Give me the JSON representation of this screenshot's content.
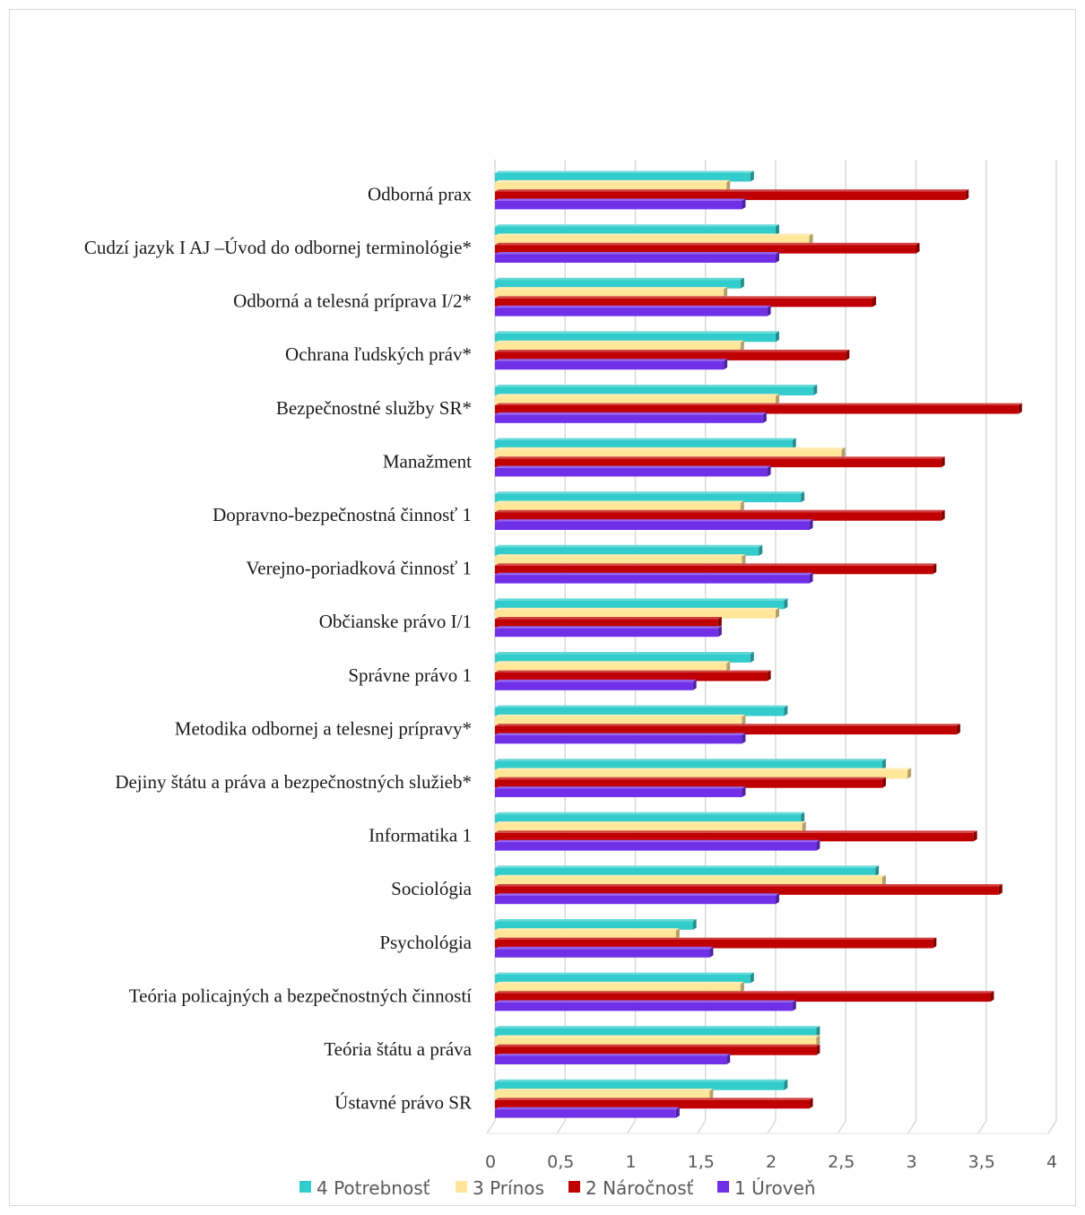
{
  "chart_data": {
    "type": "bar",
    "orientation": "horizontal",
    "style": "3d-clustered",
    "title": "",
    "xlabel": "",
    "ylabel": "",
    "xlim": [
      0,
      4
    ],
    "xticks": [
      0,
      0.5,
      1,
      1.5,
      2,
      2.5,
      3,
      3.5,
      4
    ],
    "xtick_labels": [
      "0",
      "0,5",
      "1",
      "1,5",
      "2",
      "2,5",
      "3",
      "3,5",
      "4"
    ],
    "grid": "vertical",
    "legend_position": "bottom",
    "categories": [
      "Odborná prax",
      "Cudzí jazyk  I AJ –Úvod do odbornej terminológie*",
      "Odborná a telesná príprava I/2*",
      "Ochrana ľudských práv*",
      "Bezpečnostné služby SR*",
      "Manažment",
      "Dopravno-bezpečnostná činnosť 1",
      "Verejno-poriadková činnosť 1",
      "Občianske právo I/1",
      "Správne právo 1",
      "Metodika odbornej a telesnej prípravy*",
      "Dejiny štátu a práva a bezpečnostných služieb*",
      "Informatika 1",
      "Sociológia",
      "Psychológia",
      "Teória policajných a bezpečnostných činností",
      "Teória štátu a práva",
      "Ústavné právo SR"
    ],
    "series": [
      {
        "name": "4 Potrebnosť",
        "color": "#33CCCC",
        "values": [
          1.82,
          2.0,
          1.75,
          2.0,
          2.27,
          2.12,
          2.18,
          1.88,
          2.06,
          1.82,
          2.06,
          2.76,
          2.18,
          2.71,
          1.41,
          1.82,
          2.29,
          2.06
        ]
      },
      {
        "name": "3 Prínos",
        "color": "#FFE699",
        "values": [
          1.65,
          2.24,
          1.63,
          1.75,
          2.0,
          2.47,
          1.75,
          1.76,
          2.0,
          1.65,
          1.76,
          2.94,
          2.19,
          2.76,
          1.29,
          1.75,
          2.29,
          1.53
        ]
      },
      {
        "name": "2 Náročnosť",
        "color": "#C00000",
        "values": [
          3.35,
          3.0,
          2.69,
          2.5,
          3.73,
          3.18,
          3.18,
          3.12,
          1.59,
          1.94,
          3.29,
          2.76,
          3.41,
          3.59,
          3.12,
          3.53,
          2.29,
          2.24
        ]
      },
      {
        "name": "1 Úroveň",
        "color": "#7030E8",
        "values": [
          1.76,
          2.0,
          1.94,
          1.63,
          1.91,
          1.94,
          2.24,
          2.24,
          1.59,
          1.41,
          1.76,
          1.76,
          2.29,
          2.0,
          1.53,
          2.12,
          1.65,
          1.29
        ]
      }
    ]
  }
}
